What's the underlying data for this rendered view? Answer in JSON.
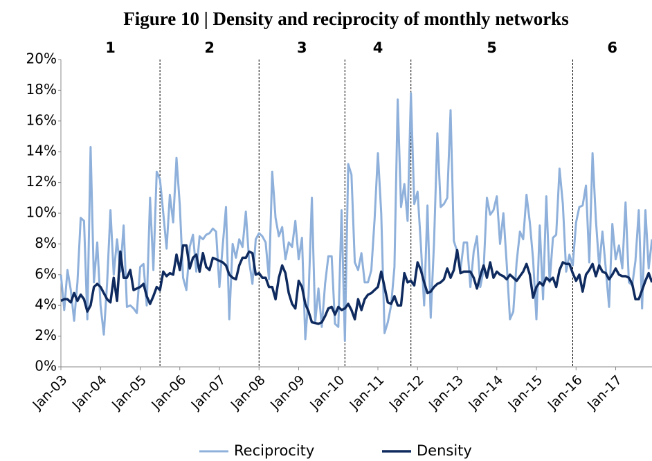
{
  "chart_data": {
    "type": "line",
    "title": "Figure 10 | Density and reciprocity of monthly networks",
    "categories": [
      "Jan-03",
      null,
      null,
      null,
      null,
      null,
      null,
      null,
      null,
      null,
      null,
      null,
      "Jan-04",
      null,
      null,
      null,
      null,
      null,
      null,
      null,
      null,
      null,
      null,
      null,
      "Jan-05",
      null,
      null,
      null,
      null,
      null,
      null,
      null,
      null,
      null,
      null,
      null,
      "Jan-06",
      null,
      null,
      null,
      null,
      null,
      null,
      null,
      null,
      null,
      null,
      null,
      "Jan-07",
      null,
      null,
      null,
      null,
      null,
      null,
      null,
      null,
      null,
      null,
      null,
      "Jan-08",
      null,
      null,
      null,
      null,
      null,
      null,
      null,
      null,
      null,
      null,
      null,
      "Jan-09",
      null,
      null,
      null,
      null,
      null,
      null,
      null,
      null,
      null,
      null,
      null,
      "Jan-10",
      null,
      null,
      null,
      null,
      null,
      null,
      null,
      null,
      null,
      null,
      null,
      "Jan-11",
      null,
      null,
      null,
      null,
      null,
      null,
      null,
      null,
      null,
      null,
      null,
      "Jan-12",
      null,
      null,
      null,
      null,
      null,
      null,
      null,
      null,
      null,
      null,
      null,
      "Jan-13",
      null,
      null,
      null,
      null,
      null,
      null,
      null,
      null,
      null,
      null,
      null,
      "Jan-14",
      null,
      null,
      null,
      null,
      null,
      null,
      null,
      null,
      null,
      null,
      null,
      "Jan-15",
      null,
      null,
      null,
      null,
      null,
      null,
      null,
      null,
      null,
      null,
      null,
      "Jan-16",
      null,
      null,
      null,
      null,
      null,
      null,
      null,
      null,
      null,
      null,
      null,
      "Jan-17",
      null,
      null,
      null,
      null,
      null,
      null,
      null,
      null,
      null,
      null,
      null
    ],
    "series": [
      {
        "name": "Reciprocity",
        "color": "#8eb0da",
        "width": 3,
        "values": [
          6.0,
          3.7,
          6.3,
          5.0,
          3.0,
          5.5,
          9.7,
          9.5,
          3.1,
          14.3,
          5.5,
          8.1,
          4.0,
          2.1,
          5.5,
          10.2,
          6.0,
          8.3,
          6.2,
          9.2,
          3.9,
          4.0,
          3.8,
          3.5,
          6.5,
          6.7,
          4.0,
          11.0,
          6.3,
          12.7,
          12.2,
          10.0,
          7.7,
          11.2,
          9.4,
          13.6,
          10.5,
          5.8,
          5.0,
          7.8,
          8.6,
          6.2,
          8.5,
          8.3,
          8.6,
          8.7,
          9.0,
          8.8,
          5.2,
          7.9,
          10.4,
          3.1,
          8.0,
          7.1,
          8.3,
          7.8,
          10.1,
          6.9,
          5.4,
          8.3,
          8.7,
          8.5,
          8.1,
          5.7,
          12.7,
          9.7,
          8.5,
          9.1,
          7.0,
          8.1,
          7.8,
          9.5,
          7.0,
          8.4,
          1.8,
          4.6,
          11.0,
          2.9,
          5.1,
          2.6,
          5.4,
          7.2,
          7.2,
          2.8,
          2.6,
          10.2,
          1.7,
          13.2,
          12.5,
          6.8,
          6.3,
          7.4,
          5.5,
          5.5,
          6.3,
          9.6,
          13.9,
          10.0,
          2.2,
          2.9,
          4.0,
          6.5,
          17.4,
          10.4,
          11.9,
          9.5,
          17.8,
          10.6,
          11.4,
          8.0,
          4.0,
          10.5,
          3.2,
          8.1,
          15.2,
          10.4,
          10.6,
          11.0,
          16.7,
          8.2,
          7.5,
          6.3,
          8.1,
          8.1,
          5.2,
          7.5,
          8.5,
          5.2,
          6.3,
          11.0,
          9.9,
          10.2,
          11.1,
          8.0,
          10.0,
          6.7,
          3.1,
          3.6,
          6.8,
          8.8,
          8.3,
          11.2,
          9.4,
          7.0,
          3.1,
          9.2,
          4.4,
          11.1,
          5.5,
          8.4,
          8.6,
          12.9,
          10.6,
          6.2,
          7.3,
          6.6,
          9.4,
          10.4,
          10.5,
          11.8,
          6.8,
          13.9,
          9.6,
          6.5,
          8.8,
          6.4,
          3.9,
          9.3,
          7.0,
          7.9,
          6.4,
          10.7,
          5.5,
          5.3,
          6.9,
          10.2,
          3.8,
          10.2,
          6.4,
          8.3
        ]
      },
      {
        "name": "Density",
        "color": "#0e2a5e",
        "width": 3.5,
        "values": [
          4.3,
          4.4,
          4.4,
          4.2,
          4.8,
          4.3,
          4.7,
          4.4,
          3.6,
          4.0,
          5.2,
          5.4,
          5.2,
          4.8,
          4.4,
          4.2,
          5.8,
          4.3,
          7.5,
          5.8,
          5.8,
          6.3,
          5.0,
          5.1,
          5.2,
          5.4,
          4.6,
          4.1,
          4.6,
          5.2,
          5.0,
          6.2,
          5.9,
          6.1,
          6.0,
          7.3,
          6.3,
          7.9,
          7.9,
          6.4,
          7.1,
          7.3,
          6.2,
          7.4,
          6.5,
          6.3,
          7.1,
          7.0,
          6.9,
          6.8,
          6.6,
          6.0,
          5.8,
          5.7,
          6.6,
          7.1,
          7.1,
          7.5,
          7.4,
          6.0,
          6.1,
          5.8,
          5.8,
          5.2,
          5.2,
          4.4,
          5.8,
          6.6,
          6.1,
          4.8,
          4.1,
          3.8,
          5.6,
          5.2,
          4.1,
          3.6,
          2.9,
          2.85,
          2.8,
          2.9,
          3.3,
          3.8,
          3.9,
          3.4,
          3.9,
          3.7,
          3.8,
          4.1,
          3.7,
          3.1,
          4.4,
          3.7,
          4.4,
          4.7,
          4.8,
          5.0,
          5.2,
          6.2,
          5.2,
          4.2,
          4.1,
          4.6,
          4.0,
          4.0,
          6.1,
          5.5,
          5.6,
          5.3,
          6.8,
          6.3,
          5.5,
          4.8,
          4.9,
          5.2,
          5.4,
          5.5,
          5.7,
          6.4,
          5.8,
          6.3,
          7.6,
          6.1,
          6.2,
          6.2,
          6.2,
          5.8,
          5.1,
          5.9,
          6.6,
          5.8,
          6.8,
          5.8,
          6.2,
          6.0,
          5.9,
          5.7,
          6.0,
          5.8,
          5.6,
          5.9,
          6.2,
          6.7,
          6.0,
          4.5,
          5.2,
          5.5,
          5.3,
          5.8,
          5.6,
          5.8,
          5.2,
          6.3,
          6.8,
          6.7,
          6.7,
          6.1,
          5.6,
          6.0,
          4.9,
          6.0,
          6.3,
          6.7,
          5.9,
          6.6,
          6.2,
          6.1,
          5.7,
          6.0,
          6.4,
          6.0,
          5.9,
          5.9,
          5.8,
          5.4,
          4.4,
          4.4,
          5.0,
          5.6,
          6.1,
          5.5
        ]
      }
    ],
    "ylim": [
      0,
      20
    ],
    "yticks": [
      {
        "value": 0,
        "label": "0%"
      },
      {
        "value": 2,
        "label": "2%"
      },
      {
        "value": 4,
        "label": "4%"
      },
      {
        "value": 6,
        "label": "6%"
      },
      {
        "value": 8,
        "label": "8%"
      },
      {
        "value": 10,
        "label": "10%"
      },
      {
        "value": 12,
        "label": "12%"
      },
      {
        "value": 14,
        "label": "14%"
      },
      {
        "value": 16,
        "label": "16%"
      },
      {
        "value": 18,
        "label": "18%"
      },
      {
        "value": 20,
        "label": "20%"
      }
    ],
    "dividers": [
      30,
      60,
      86,
      106,
      155
    ],
    "periods": [
      "1",
      "2",
      "3",
      "4",
      "5",
      "6"
    ],
    "legend": "bottom"
  }
}
